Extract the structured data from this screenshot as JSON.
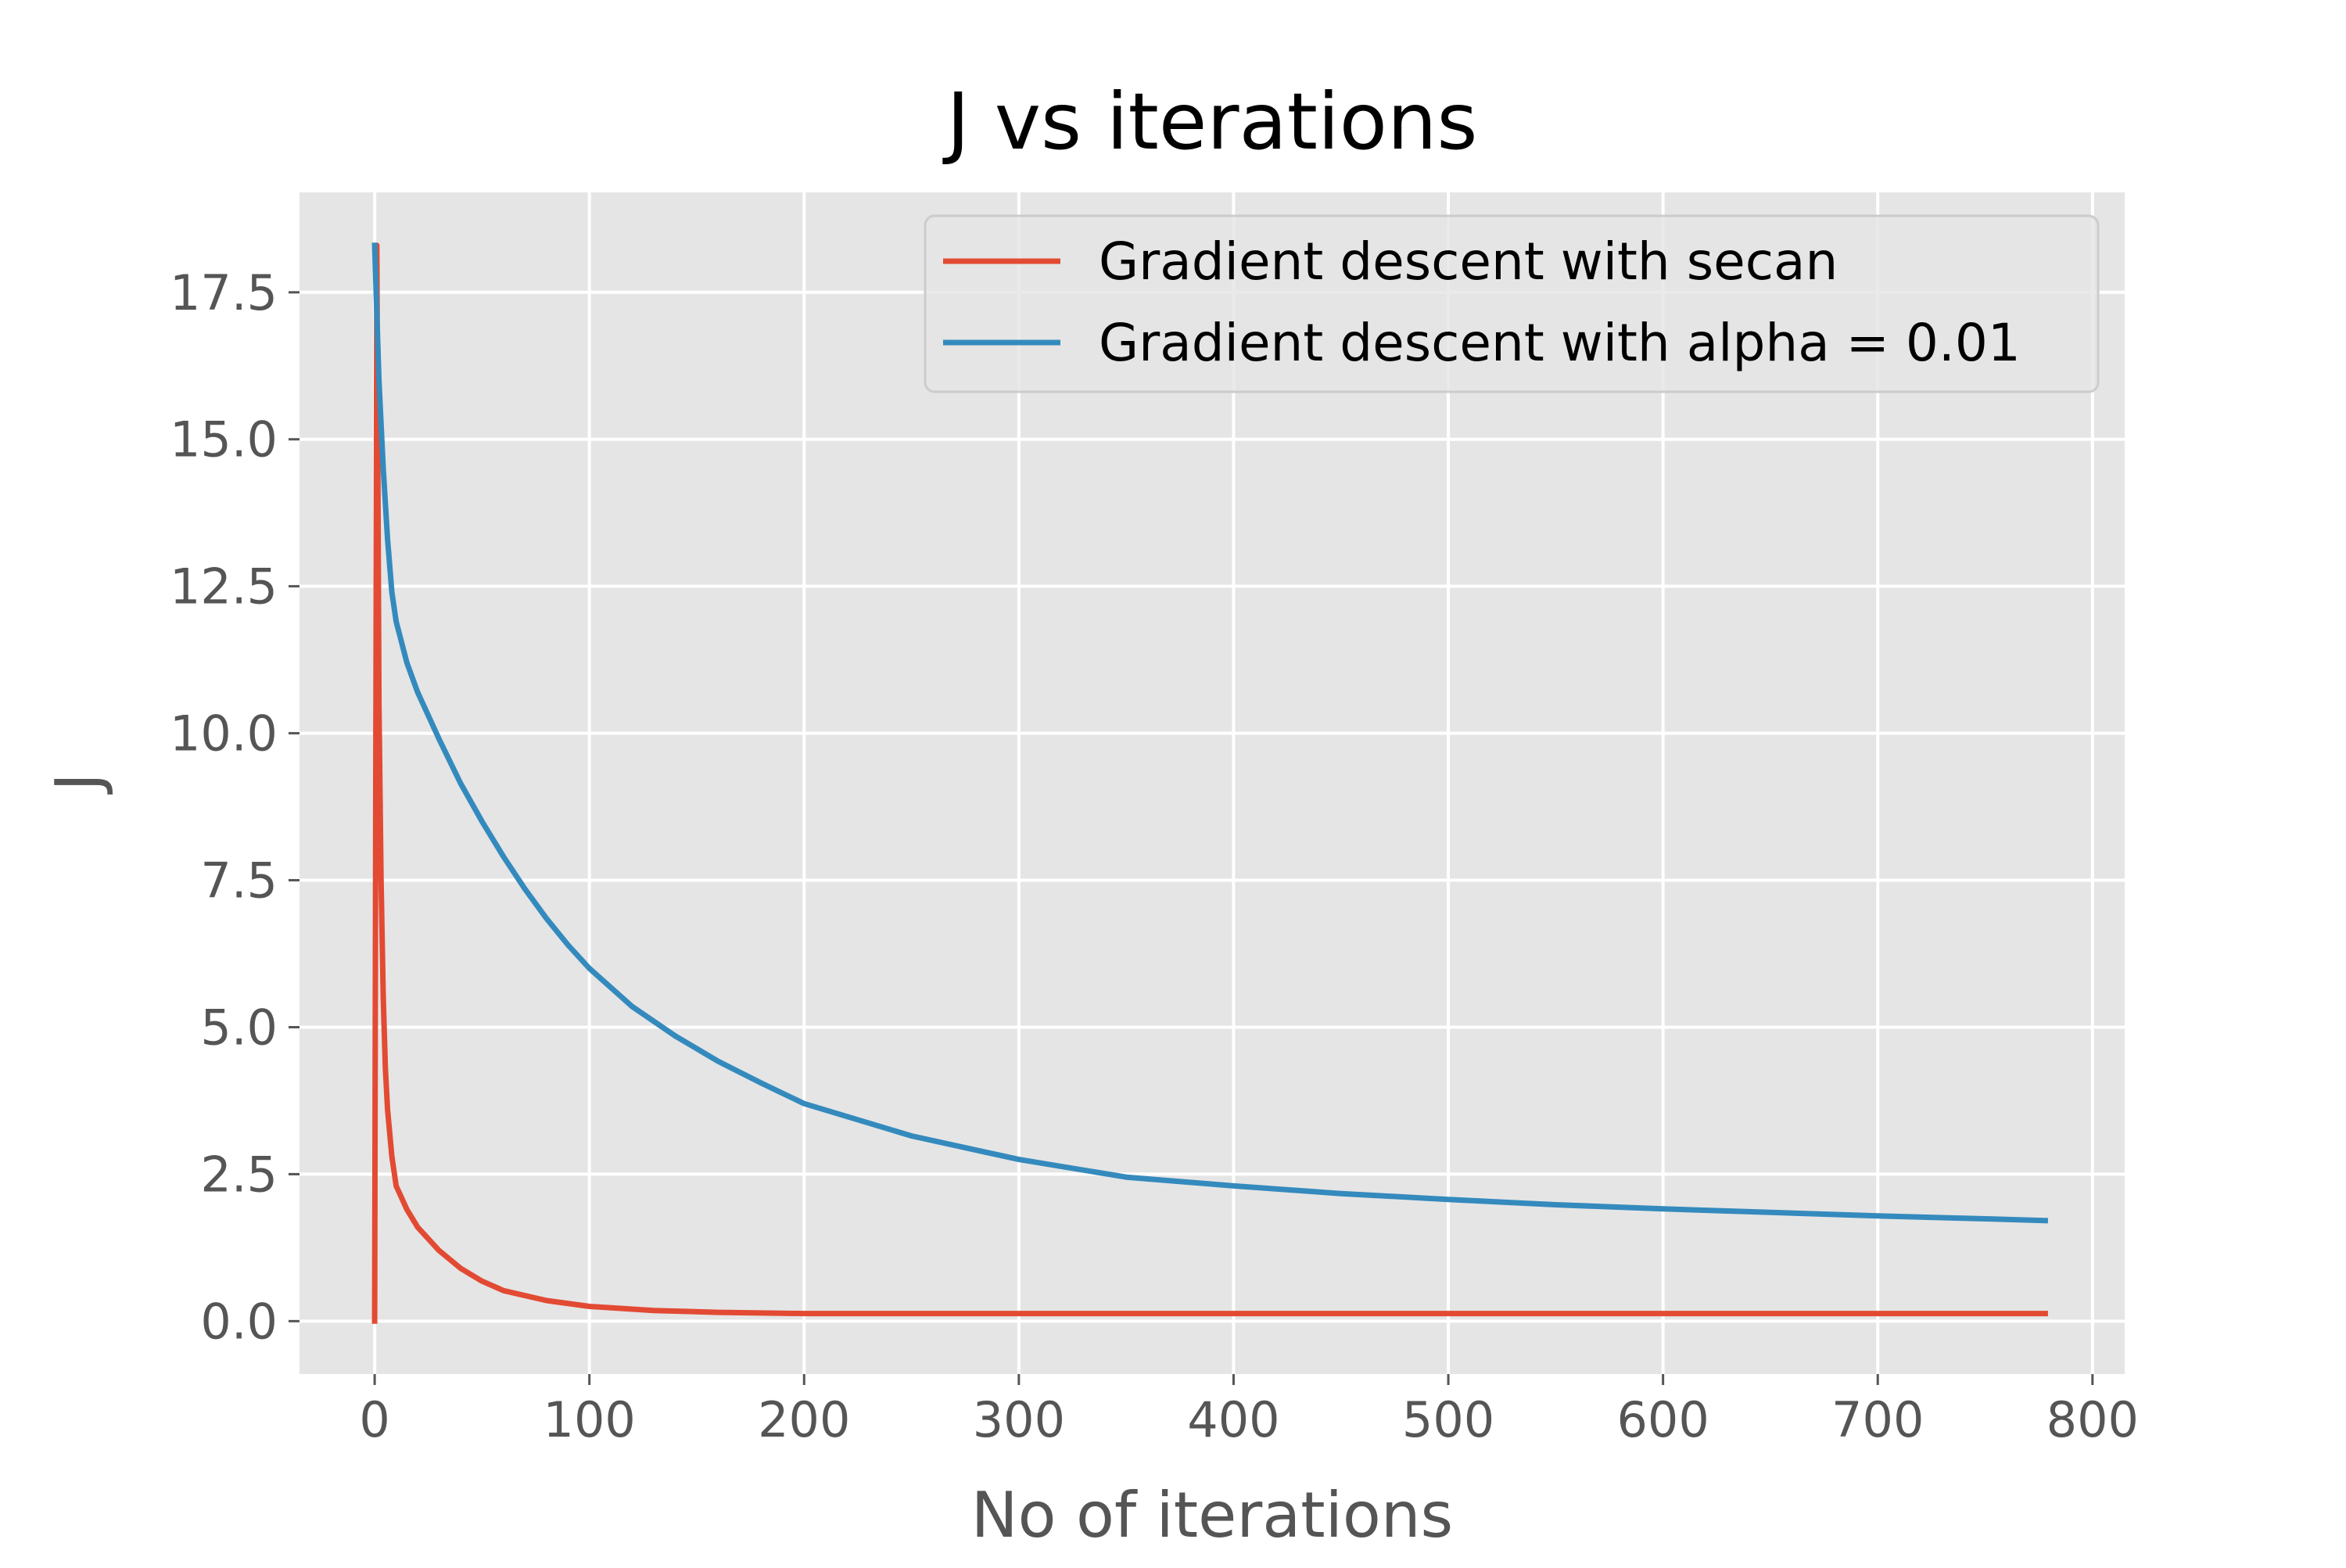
{
  "chart_data": {
    "type": "line",
    "title": "J vs iterations",
    "xlabel": "No of iterations",
    "ylabel": "J",
    "xlim": [
      -35,
      815
    ],
    "ylim": [
      -0.9,
      19.2
    ],
    "xticks": [
      0,
      100,
      200,
      300,
      400,
      500,
      600,
      700,
      800
    ],
    "yticks": [
      0.0,
      2.5,
      5.0,
      7.5,
      10.0,
      12.5,
      15.0,
      17.5
    ],
    "xtick_labels": [
      "0",
      "100",
      "200",
      "300",
      "400",
      "500",
      "600",
      "700",
      "800"
    ],
    "ytick_labels": [
      "0.0",
      "2.5",
      "5.0",
      "7.5",
      "10.0",
      "12.5",
      "15.0",
      "17.5"
    ],
    "grid": true,
    "legend_position": "top-right",
    "series": [
      {
        "name": "Gradient descent with secan",
        "color": "#E24A33",
        "points": [
          [
            0,
            0.0
          ],
          [
            1,
            18.3
          ],
          [
            2,
            10.5
          ],
          [
            3,
            7.5
          ],
          [
            4,
            5.5
          ],
          [
            5,
            4.3
          ],
          [
            6,
            3.6
          ],
          [
            8,
            2.8
          ],
          [
            10,
            2.3
          ],
          [
            15,
            1.9
          ],
          [
            20,
            1.6
          ],
          [
            30,
            1.2
          ],
          [
            40,
            0.9
          ],
          [
            50,
            0.68
          ],
          [
            60,
            0.52
          ],
          [
            80,
            0.35
          ],
          [
            100,
            0.25
          ],
          [
            130,
            0.18
          ],
          [
            160,
            0.15
          ],
          [
            200,
            0.13
          ],
          [
            300,
            0.13
          ],
          [
            400,
            0.13
          ],
          [
            500,
            0.13
          ],
          [
            600,
            0.13
          ],
          [
            700,
            0.13
          ],
          [
            778,
            0.13
          ]
        ]
      },
      {
        "name": "Gradient descent with alpha = 0.01",
        "color": "#348ABD",
        "points": [
          [
            0,
            18.3
          ],
          [
            2,
            16.0
          ],
          [
            4,
            14.5
          ],
          [
            6,
            13.3
          ],
          [
            8,
            12.4
          ],
          [
            10,
            11.9
          ],
          [
            15,
            11.2
          ],
          [
            20,
            10.7
          ],
          [
            30,
            9.9
          ],
          [
            40,
            9.15
          ],
          [
            50,
            8.5
          ],
          [
            60,
            7.9
          ],
          [
            70,
            7.35
          ],
          [
            80,
            6.85
          ],
          [
            90,
            6.4
          ],
          [
            100,
            6.0
          ],
          [
            120,
            5.35
          ],
          [
            140,
            4.85
          ],
          [
            160,
            4.42
          ],
          [
            180,
            4.05
          ],
          [
            200,
            3.7
          ],
          [
            250,
            3.15
          ],
          [
            300,
            2.75
          ],
          [
            350,
            2.45
          ],
          [
            400,
            2.3
          ],
          [
            450,
            2.17
          ],
          [
            500,
            2.07
          ],
          [
            550,
            1.98
          ],
          [
            600,
            1.91
          ],
          [
            650,
            1.85
          ],
          [
            700,
            1.79
          ],
          [
            750,
            1.74
          ],
          [
            778,
            1.71
          ]
        ]
      }
    ]
  }
}
